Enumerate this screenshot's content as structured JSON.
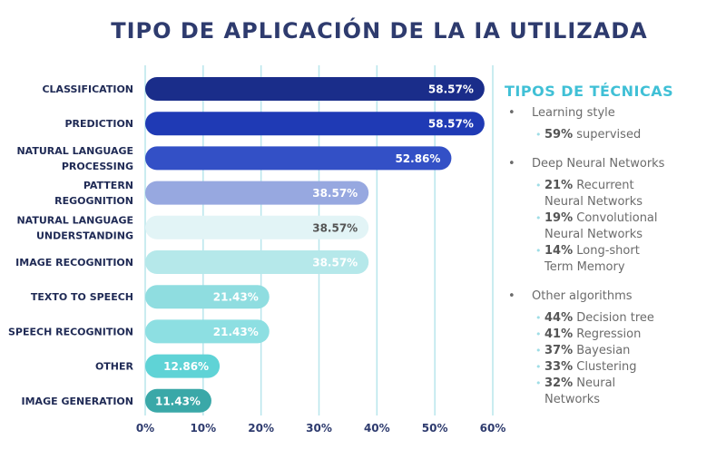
{
  "title": "TIPO DE APLICACIÓN DE LA IA UTILIZADA",
  "chart_data": {
    "type": "bar",
    "orientation": "horizontal",
    "categories": [
      [
        "CLASSIFICATION"
      ],
      [
        "PREDICTION"
      ],
      [
        "NATURAL LANGUAGE",
        "PROCESSING"
      ],
      [
        "PATTERN",
        "REGOGNITION"
      ],
      [
        "NATURAL LANGUAGE",
        "UNDERSTANDING"
      ],
      [
        "IMAGE RECOGNITION"
      ],
      [
        "TEXTO TO SPEECH"
      ],
      [
        "SPEECH RECOGNITION"
      ],
      [
        "OTHER"
      ],
      [
        "IMAGE GENERATION"
      ]
    ],
    "values": [
      58.57,
      58.57,
      52.86,
      38.57,
      38.57,
      38.57,
      21.43,
      21.43,
      12.86,
      11.43
    ],
    "value_labels": [
      "58.57%",
      "58.57%",
      "52.86%",
      "38.57%",
      "38.57%",
      "38.57%",
      "21.43%",
      "21.43%",
      "12.86%",
      "11.43%"
    ],
    "colors": [
      "#1a2d8a",
      "#1f3ab5",
      "#3350c6",
      "#97a8e0",
      "#e2f4f6",
      "#b5e8ea",
      "#8fdde0",
      "#8ddfe2",
      "#5fd3d6",
      "#3aa8a8"
    ],
    "label_colors": [
      "#ffffff",
      "#ffffff",
      "#ffffff",
      "#ffffff",
      "#555555",
      "#ffffff",
      "#ffffff",
      "#ffffff",
      "#ffffff",
      "#ffffff"
    ],
    "xlim": [
      0,
      60
    ],
    "xticks": [
      0,
      10,
      20,
      30,
      40,
      50,
      60
    ],
    "xtick_labels": [
      "0%",
      "10%",
      "20%",
      "30%",
      "40%",
      "50%",
      "60%"
    ],
    "grid": true,
    "grid_color": "#b8e6ec"
  },
  "panel": {
    "title": "TIPOS DE TÉCNICAS",
    "groups": [
      {
        "name": "Learning style",
        "items": [
          {
            "pct": "59%",
            "text": [
              " supervised"
            ]
          }
        ]
      },
      {
        "name": "Deep Neural Networks",
        "items": [
          {
            "pct": "21%",
            "text": [
              " Recurrent",
              "Neural Networks"
            ]
          },
          {
            "pct": "19%",
            "text": [
              " Convolutional",
              "Neural Networks"
            ]
          },
          {
            "pct": "14%",
            "text": [
              " Long-short",
              "Term Memory"
            ]
          }
        ]
      },
      {
        "name": "Other algorithms",
        "items": [
          {
            "pct": "44%",
            "text": [
              " Decision tree"
            ]
          },
          {
            "pct": "41%",
            "text": [
              " Regression"
            ]
          },
          {
            "pct": "37%",
            "text": [
              " Bayesian"
            ]
          },
          {
            "pct": "33%",
            "text": [
              " Clustering"
            ]
          },
          {
            "pct": "32%",
            "text": [
              " Neural",
              "Networks"
            ]
          }
        ]
      }
    ]
  }
}
